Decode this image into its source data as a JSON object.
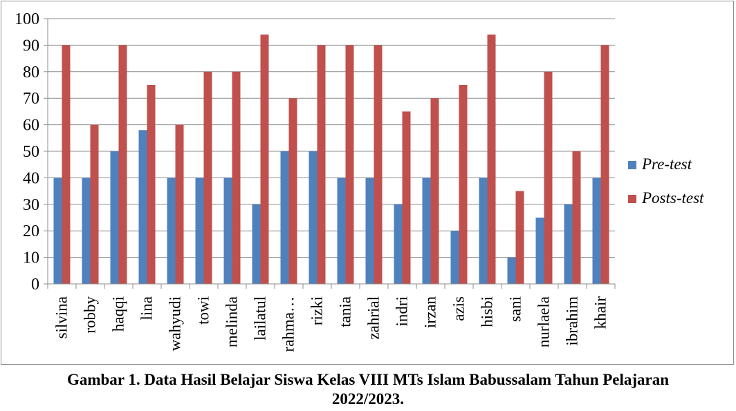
{
  "chart_data": {
    "type": "bar",
    "categories": [
      "silvina",
      "robby",
      "haqqi",
      "lina",
      "wahyudi",
      "towi",
      "melinda",
      "lailatul",
      "rahma…",
      "rizki",
      "tania",
      "zahrial",
      "indri",
      "irzan",
      "azis",
      "hisbi",
      "sani",
      "nurlaela",
      "ibrahim",
      "khair"
    ],
    "series": [
      {
        "name": "Pre-test",
        "color": "#4F81BD",
        "values": [
          40,
          40,
          50,
          58,
          40,
          40,
          40,
          30,
          50,
          50,
          40,
          40,
          30,
          40,
          20,
          40,
          10,
          25,
          30,
          40
        ]
      },
      {
        "name": "Posts-test",
        "color": "#C0504D",
        "values": [
          90,
          60,
          90,
          75,
          60,
          80,
          80,
          94,
          70,
          90,
          90,
          90,
          65,
          70,
          75,
          94,
          35,
          80,
          50,
          90
        ]
      }
    ],
    "ylim": [
      0,
      100
    ],
    "yticks": [
      "0",
      "10",
      "20",
      "30",
      "40",
      "50",
      "60",
      "70",
      "80",
      "90",
      "100"
    ],
    "grid": true,
    "legend": "right"
  },
  "caption": {
    "line1": "Gambar 1. Data Hasil Belajar Siswa Kelas VIII MTs Islam Babussalam Tahun Pelajaran",
    "line2": "2022/2023."
  }
}
